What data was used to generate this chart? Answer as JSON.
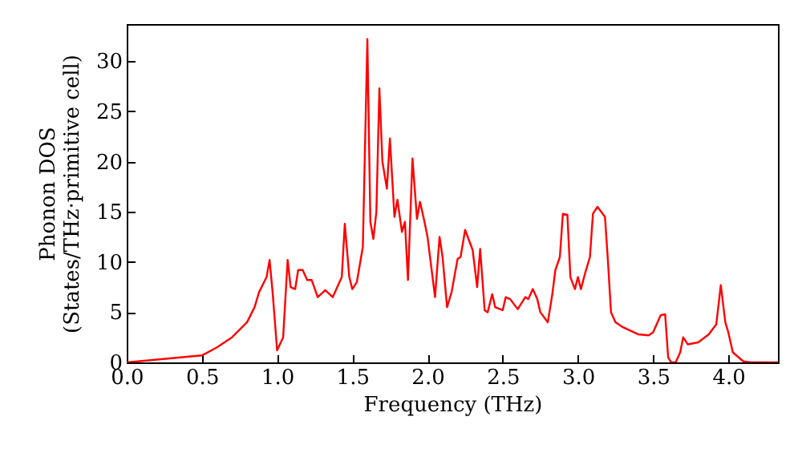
{
  "chart_data": {
    "type": "line",
    "xlabel": "Frequency (THz)",
    "ylabel": "Phonon DOS\n(States/THz·primitive cell)",
    "x": [
      0,
      0.5,
      0.6,
      0.7,
      0.8,
      0.85,
      0.88,
      0.93,
      0.95,
      0.97,
      1.0,
      1.04,
      1.07,
      1.09,
      1.12,
      1.14,
      1.17,
      1.2,
      1.23,
      1.27,
      1.32,
      1.37,
      1.4,
      1.43,
      1.45,
      1.48,
      1.5,
      1.53,
      1.57,
      1.6,
      1.62,
      1.64,
      1.66,
      1.68,
      1.7,
      1.73,
      1.75,
      1.78,
      1.8,
      1.83,
      1.85,
      1.87,
      1.9,
      1.93,
      1.95,
      1.98,
      2.0,
      2.05,
      2.08,
      2.1,
      2.13,
      2.16,
      2.2,
      2.22,
      2.25,
      2.3,
      2.33,
      2.35,
      2.38,
      2.4,
      2.43,
      2.45,
      2.5,
      2.52,
      2.55,
      2.6,
      2.65,
      2.67,
      2.7,
      2.73,
      2.75,
      2.8,
      2.83,
      2.85,
      2.88,
      2.9,
      2.93,
      2.95,
      2.98,
      3.0,
      3.02,
      3.05,
      3.08,
      3.1,
      3.13,
      3.18,
      3.2,
      3.22,
      3.25,
      3.3,
      3.4,
      3.47,
      3.5,
      3.55,
      3.58,
      3.6,
      3.62,
      3.65,
      3.68,
      3.7,
      3.73,
      3.8,
      3.87,
      3.92,
      3.95,
      3.98,
      4.0,
      4.03,
      4.1,
      4.15,
      4.33
    ],
    "series": [
      {
        "color": "#ff0000",
        "values": [
          0,
          0.7,
          1.5,
          2.5,
          4,
          5.5,
          7,
          8.5,
          10.2,
          7,
          1.2,
          2.5,
          10.2,
          7.5,
          7.3,
          9.2,
          9.2,
          8.2,
          8.2,
          6.5,
          7.2,
          6.5,
          7.5,
          8.5,
          13.8,
          8.5,
          7.3,
          8,
          11.5,
          32.2,
          14,
          12.3,
          15,
          27.3,
          20,
          17.3,
          22.3,
          14.5,
          16.2,
          13,
          14,
          8.2,
          20.3,
          14.3,
          16,
          14,
          12.5,
          6.5,
          12.5,
          10.5,
          5.5,
          7,
          10.3,
          10.5,
          13.2,
          11.2,
          7.5,
          11.3,
          5.2,
          5,
          6.8,
          5.5,
          5.2,
          6.5,
          6.3,
          5.3,
          6.5,
          6.3,
          7.3,
          6.3,
          5,
          4,
          6.8,
          9.2,
          10.5,
          14.8,
          14.7,
          8.5,
          7.3,
          8.5,
          7.3,
          9,
          10.5,
          14.8,
          15.5,
          14.5,
          10,
          5,
          4,
          3.5,
          2.8,
          2.7,
          3,
          4.7,
          4.8,
          0.5,
          0,
          0,
          1,
          2.5,
          1.8,
          2,
          2.8,
          3.8,
          7.7,
          4,
          3,
          1,
          0.1,
          0,
          0
        ]
      }
    ],
    "xlim": [
      0,
      4.33
    ],
    "xticks": [
      {
        "value": 0,
        "label": "0.0"
      },
      {
        "value": 0.5,
        "label": "0.5"
      },
      {
        "value": 1,
        "label": "1.0"
      },
      {
        "value": 1.5,
        "label": "1.5"
      },
      {
        "value": 2,
        "label": "2.0"
      },
      {
        "value": 2.5,
        "label": "2.5"
      },
      {
        "value": 3,
        "label": "3.0"
      },
      {
        "value": 3.5,
        "label": "3.5"
      },
      {
        "value": 4,
        "label": "4.0"
      }
    ],
    "ylim": [
      0,
      33.7
    ],
    "yticks": [
      0,
      5,
      10,
      15,
      20,
      25,
      30
    ],
    "grid": false,
    "marker": "none",
    "line_style": "solid"
  }
}
